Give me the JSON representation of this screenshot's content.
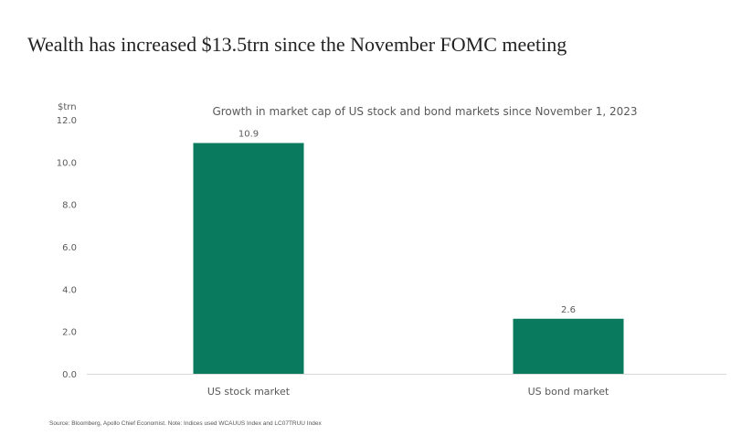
{
  "headline": "Wealth has increased $13.5trn since the November FOMC meeting",
  "source": "Source: Bloomberg, Apollo Chief Economist. Note: Indices used WCAUUS Index and LC07TRUU Index",
  "colors": {
    "bar": "#0a7a5e",
    "axis": "#d9d9d9",
    "text": "#595959"
  },
  "chart_data": {
    "type": "bar",
    "title": "Growth in market cap of US stock and bond markets since November 1, 2023",
    "ylabel": "$trn",
    "xlabel": "",
    "categories": [
      "US stock market",
      "US bond market"
    ],
    "values": [
      10.9,
      2.6
    ],
    "data_labels": [
      "10.9",
      "2.6"
    ],
    "ylim": [
      0,
      12
    ],
    "yticks": [
      "0.0",
      "2.0",
      "4.0",
      "6.0",
      "8.0",
      "10.0",
      "12.0"
    ],
    "grid": false,
    "legend": "none"
  }
}
